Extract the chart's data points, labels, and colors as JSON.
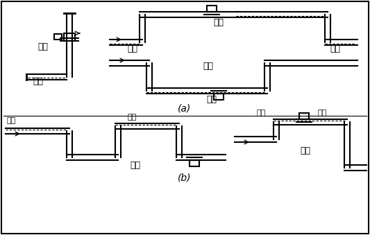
{
  "bg_color": "#ffffff",
  "line_color": "#000000",
  "label_a": "(a)",
  "label_b": "(b)",
  "labels": {
    "correct1": "正确",
    "liquid1": "液体",
    "correct2": "正确",
    "liquid2": "液体",
    "liquid3": "液体",
    "wrong1": "错误",
    "liquid4": "液体",
    "bubble1": "气泡",
    "bubble2": "气泡",
    "correct3": "正确",
    "bubble3": "气泡",
    "bubble4": "气泡",
    "wrong2": "错误"
  },
  "font_size": 9,
  "font_size_label": 10
}
